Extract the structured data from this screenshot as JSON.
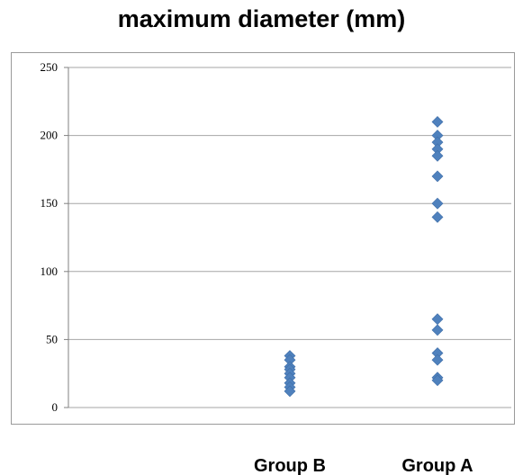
{
  "chart_data": {
    "type": "scatter",
    "title": "maximum diameter (mm)",
    "xlabel": "",
    "ylabel": "",
    "categories": [
      "",
      "Group B",
      "Group A"
    ],
    "ylim": [
      0,
      250
    ],
    "yticks": [
      0,
      50,
      100,
      150,
      200,
      250
    ],
    "grid": true,
    "legend": "none",
    "marker": "diamond",
    "color": "#4F81BD",
    "series": [
      {
        "category": "Group B",
        "values": [
          38,
          35,
          30,
          28,
          25,
          22,
          18,
          15,
          12
        ]
      },
      {
        "category": "Group A",
        "values": [
          210,
          200,
          195,
          190,
          185,
          170,
          150,
          140,
          65,
          57,
          40,
          35,
          22,
          20
        ]
      }
    ]
  }
}
